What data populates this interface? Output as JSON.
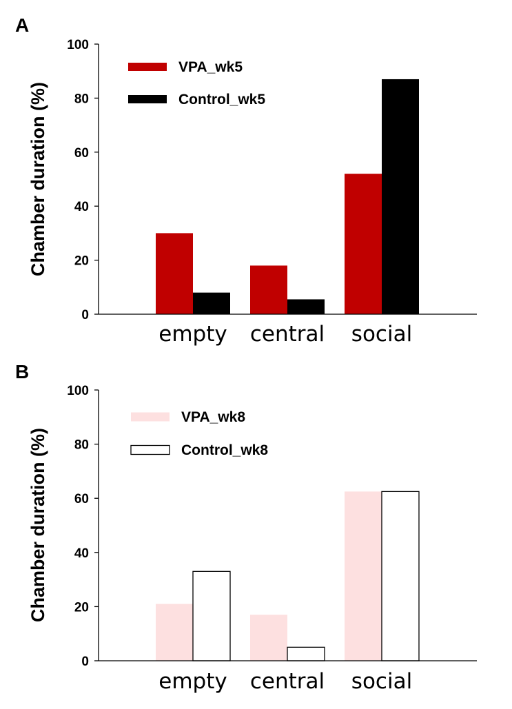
{
  "chart_data": [
    {
      "panel": "A",
      "type": "bar",
      "categories": [
        "empty",
        "central",
        "social"
      ],
      "series": [
        {
          "name": "VPA_wk5",
          "values": [
            30,
            18,
            52
          ],
          "fill": "#c00000",
          "stroke": "none"
        },
        {
          "name": "Control_wk5",
          "values": [
            8,
            5.5,
            87
          ],
          "fill": "#000000",
          "stroke": "none"
        }
      ],
      "ylabel": "Chamber duration (%)",
      "xlabel": "",
      "ylim": [
        0,
        100
      ],
      "yticks": [
        0,
        20,
        40,
        60,
        80,
        100
      ],
      "legend_position": "top-left",
      "grid": false
    },
    {
      "panel": "B",
      "type": "bar",
      "categories": [
        "empty",
        "central",
        "social"
      ],
      "series": [
        {
          "name": "VPA_wk8",
          "values": [
            21,
            17,
            62.5
          ],
          "fill": "#fde0e0",
          "stroke": "none"
        },
        {
          "name": "Control_wk8",
          "values": [
            33,
            5,
            62.5
          ],
          "fill": "#ffffff",
          "stroke": "#000000"
        }
      ],
      "ylabel": "Chamber duration (%)",
      "xlabel": "",
      "ylim": [
        0,
        100
      ],
      "yticks": [
        0,
        20,
        40,
        60,
        80,
        100
      ],
      "legend_position": "top-left",
      "grid": false
    }
  ]
}
